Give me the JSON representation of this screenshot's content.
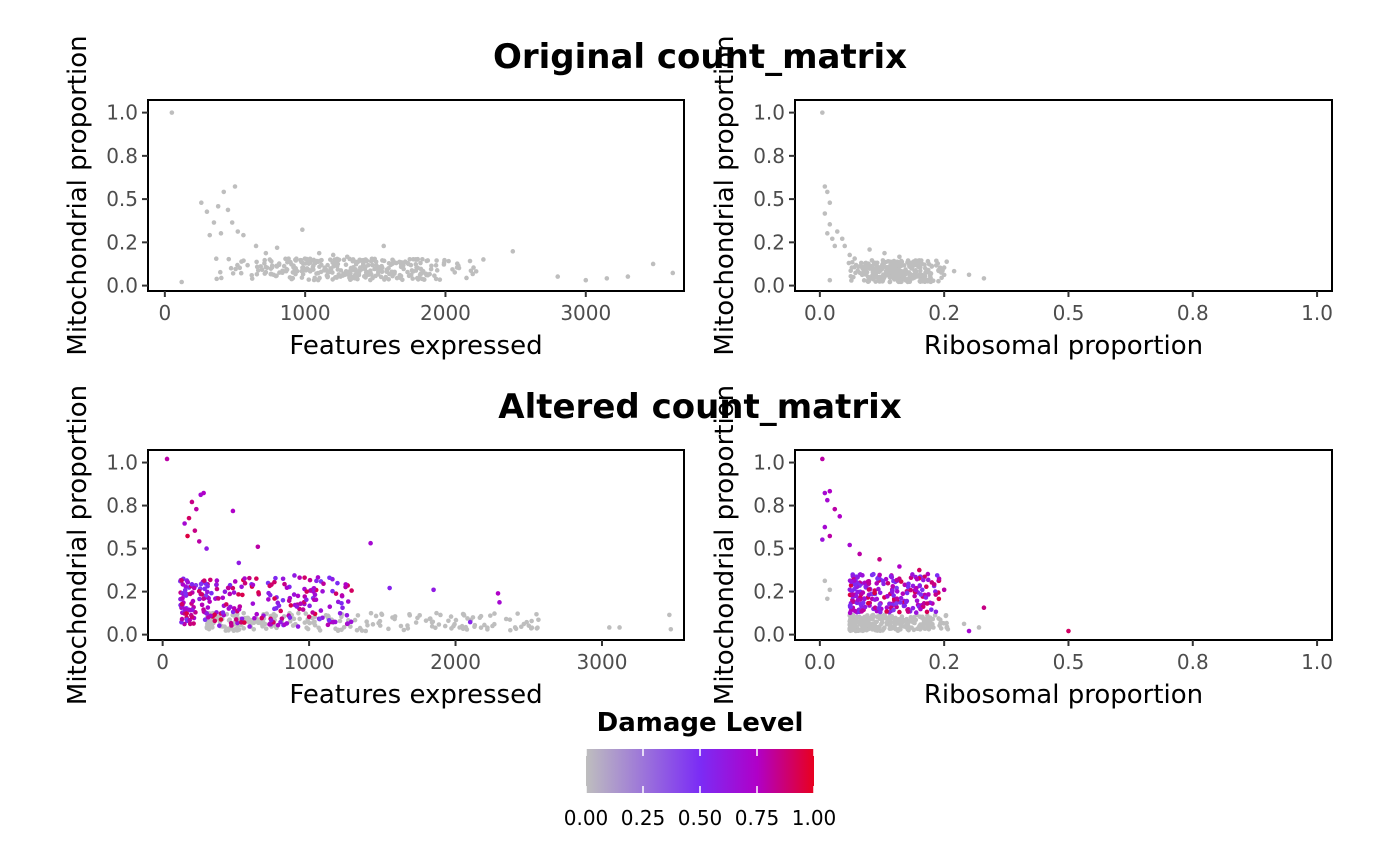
{
  "chart_data": {
    "type": "scatter",
    "rows": [
      {
        "title": "Original count_matrix"
      },
      {
        "title": "Altered count_matrix"
      }
    ],
    "panels": [
      {
        "id": "orig-features",
        "row": 0,
        "col": 0,
        "xlabel": "Features expressed",
        "ylabel": "Mitochondrial proportion",
        "xlim": [
          -120,
          3700
        ],
        "ylim": [
          -0.03,
          1.03
        ],
        "xticks": [
          0,
          1000,
          2000,
          3000
        ],
        "xtick_labels": [
          "0",
          "1000",
          "2000",
          "3000"
        ],
        "colored": false,
        "points": [
          [
            50,
            0.96
          ],
          [
            120,
            0.02
          ],
          [
            260,
            0.46
          ],
          [
            300,
            0.41
          ],
          [
            320,
            0.28
          ],
          [
            350,
            0.35
          ],
          [
            380,
            0.44
          ],
          [
            400,
            0.29
          ],
          [
            420,
            0.52
          ],
          [
            450,
            0.42
          ],
          [
            480,
            0.35
          ],
          [
            500,
            0.55
          ],
          [
            520,
            0.3
          ],
          [
            560,
            0.28
          ],
          [
            650,
            0.22
          ],
          [
            720,
            0.18
          ],
          [
            800,
            0.21
          ],
          [
            980,
            0.31
          ],
          [
            1100,
            0.18
          ],
          [
            1200,
            0.17
          ],
          [
            1300,
            0.16
          ],
          [
            1400,
            0.14
          ],
          [
            1560,
            0.22
          ],
          [
            1700,
            0.12
          ],
          [
            1900,
            0.11
          ],
          [
            2050,
            0.09
          ],
          [
            2200,
            0.1
          ],
          [
            2480,
            0.19
          ],
          [
            2800,
            0.05
          ],
          [
            3000,
            0.03
          ],
          [
            3150,
            0.04
          ],
          [
            3300,
            0.05
          ],
          [
            3480,
            0.12
          ],
          [
            3620,
            0.07
          ]
        ],
        "cluster": {
          "xmin": 300,
          "xmax": 2300,
          "ymin": 0.03,
          "ymax": 0.15,
          "n": 330,
          "seed": 11
        }
      },
      {
        "id": "orig-ribo",
        "row": 0,
        "col": 1,
        "xlabel": "Ribosomal proportion",
        "ylabel": "Mitochondrial proportion",
        "xlim": [
          -0.05,
          1.03
        ],
        "ylim": [
          -0.03,
          1.03
        ],
        "xticks": [
          0,
          0.25,
          0.5,
          0.75,
          1.0
        ],
        "xtick_labels": [
          "0.0",
          "0.2",
          "0.5",
          "0.8",
          "1.0"
        ],
        "colored": false,
        "points": [
          [
            0.005,
            0.96
          ],
          [
            0.01,
            0.55
          ],
          [
            0.015,
            0.52
          ],
          [
            0.02,
            0.46
          ],
          [
            0.01,
            0.4
          ],
          [
            0.02,
            0.34
          ],
          [
            0.015,
            0.29
          ],
          [
            0.025,
            0.26
          ],
          [
            0.03,
            0.22
          ],
          [
            0.035,
            0.3
          ],
          [
            0.045,
            0.26
          ],
          [
            0.05,
            0.22
          ],
          [
            0.06,
            0.17
          ],
          [
            0.07,
            0.15
          ],
          [
            0.02,
            0.03
          ],
          [
            0.1,
            0.2
          ],
          [
            0.13,
            0.18
          ],
          [
            0.16,
            0.16
          ],
          [
            0.2,
            0.14
          ],
          [
            0.25,
            0.1
          ],
          [
            0.27,
            0.08
          ],
          [
            0.3,
            0.06
          ],
          [
            0.33,
            0.04
          ]
        ],
        "cluster": {
          "xmin": 0.05,
          "xmax": 0.26,
          "ymin": 0.02,
          "ymax": 0.14,
          "n": 320,
          "seed": 23
        }
      },
      {
        "id": "alt-features",
        "row": 1,
        "col": 0,
        "xlabel": "Features expressed",
        "ylabel": "Mitochondrial proportion",
        "xlim": [
          -100,
          3560
        ],
        "ylim": [
          -0.03,
          1.03
        ],
        "xticks": [
          0,
          1000,
          2000,
          3000
        ],
        "xtick_labels": [
          "0",
          "1000",
          "2000",
          "3000"
        ],
        "colored": true,
        "points": [
          [
            30,
            0.98,
            0.8
          ],
          [
            260,
            0.78,
            0.7
          ],
          [
            280,
            0.79,
            0.75
          ],
          [
            200,
            0.74,
            0.85
          ],
          [
            230,
            0.7,
            0.8
          ],
          [
            180,
            0.65,
            0.9
          ],
          [
            150,
            0.62,
            0.7
          ],
          [
            220,
            0.58,
            0.85
          ],
          [
            170,
            0.55,
            0.95
          ],
          [
            250,
            0.52,
            0.8
          ],
          [
            300,
            0.48,
            0.6
          ],
          [
            480,
            0.69,
            0.75
          ],
          [
            520,
            0.4,
            0.6
          ],
          [
            650,
            0.49,
            0.8
          ],
          [
            900,
            0.33,
            0.6
          ],
          [
            1050,
            0.3,
            0.55
          ],
          [
            1250,
            0.28,
            0.75
          ],
          [
            1420,
            0.51,
            0.7
          ],
          [
            1550,
            0.26,
            0.55
          ],
          [
            1850,
            0.25,
            0.6
          ],
          [
            2290,
            0.23,
            0.75
          ],
          [
            2300,
            0.18,
            0.7
          ],
          [
            2100,
            0.07,
            0.55
          ],
          [
            1870,
            0.12,
            0.0
          ],
          [
            2500,
            0.05,
            0.0
          ],
          [
            3050,
            0.04,
            0.0
          ],
          [
            3120,
            0.04,
            0.0
          ],
          [
            3460,
            0.11,
            0.0
          ],
          [
            3470,
            0.03,
            0.0
          ]
        ],
        "cluster": {
          "xmin": 120,
          "xmax": 1300,
          "ymin": 0.04,
          "ymax": 0.32,
          "n": 250,
          "seed": 37
        },
        "cluster_grey": {
          "xmin": 300,
          "xmax": 2600,
          "ymin": 0.02,
          "ymax": 0.12,
          "n": 230,
          "seed": 41
        }
      },
      {
        "id": "alt-ribo",
        "row": 1,
        "col": 1,
        "xlabel": "Ribosomal proportion",
        "ylabel": "Mitochondrial proportion",
        "xlim": [
          -0.05,
          1.03
        ],
        "ylim": [
          -0.03,
          1.03
        ],
        "xticks": [
          0,
          0.25,
          0.5,
          0.75,
          1.0
        ],
        "xtick_labels": [
          "0.0",
          "0.2",
          "0.5",
          "0.8",
          "1.0"
        ],
        "colored": true,
        "points": [
          [
            0.005,
            0.98,
            0.8
          ],
          [
            0.01,
            0.79,
            0.7
          ],
          [
            0.02,
            0.8,
            0.75
          ],
          [
            0.015,
            0.75,
            0.7
          ],
          [
            0.03,
            0.7,
            0.8
          ],
          [
            0.04,
            0.66,
            0.75
          ],
          [
            0.01,
            0.6,
            0.7
          ],
          [
            0.02,
            0.55,
            0.8
          ],
          [
            0.005,
            0.53,
            0.65
          ],
          [
            0.06,
            0.5,
            0.7
          ],
          [
            0.08,
            0.45,
            0.8
          ],
          [
            0.12,
            0.42,
            0.85
          ],
          [
            0.16,
            0.38,
            0.75
          ],
          [
            0.2,
            0.36,
            0.9
          ],
          [
            0.23,
            0.28,
            0.85
          ],
          [
            0.25,
            0.25,
            0.8
          ],
          [
            0.33,
            0.15,
            0.85
          ],
          [
            0.5,
            0.02,
            0.9
          ],
          [
            0.3,
            0.02,
            0.7
          ],
          [
            0.29,
            0.06,
            0.0
          ],
          [
            0.32,
            0.04,
            0.0
          ],
          [
            0.01,
            0.3,
            0.0
          ],
          [
            0.02,
            0.25,
            0.0
          ],
          [
            0.015,
            0.2,
            0.0
          ]
        ],
        "cluster": {
          "xmin": 0.06,
          "xmax": 0.24,
          "ymin": 0.12,
          "ymax": 0.34,
          "n": 220,
          "seed": 53
        },
        "cluster_grey": {
          "xmin": 0.06,
          "xmax": 0.26,
          "ymin": 0.02,
          "ymax": 0.11,
          "n": 260,
          "seed": 59
        }
      }
    ],
    "legend": {
      "title": "Damage Level",
      "placement": "bottom-center",
      "ticks": [
        "0.00",
        "0.25",
        "0.50",
        "0.75",
        "1.00"
      ],
      "colors": [
        "#bebebe",
        "#7b2cf5",
        "#b000c8",
        "#e8001f"
      ]
    },
    "point_color_default": "#bebebe"
  }
}
